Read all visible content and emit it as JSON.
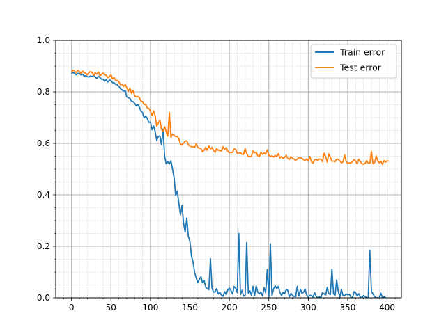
{
  "chart_data": {
    "type": "line",
    "title": "",
    "xlabel": "",
    "ylabel": "",
    "xlim": [
      -20,
      418
    ],
    "ylim": [
      0.0,
      1.0
    ],
    "x_ticks": [
      0,
      50,
      100,
      150,
      200,
      250,
      300,
      350,
      400
    ],
    "x_tick_labels": [
      "0",
      "50",
      "100",
      "150",
      "200",
      "250",
      "300",
      "350",
      "400"
    ],
    "y_ticks": [
      0.0,
      0.2,
      0.4,
      0.6,
      0.8,
      1.0
    ],
    "y_tick_labels": [
      "0.0",
      "0.2",
      "0.4",
      "0.6",
      "0.8",
      "1.0"
    ],
    "grid": "major and minor",
    "legend_position": "upper right",
    "x_start": 0,
    "x_step": 2,
    "series": [
      {
        "name": "Train error",
        "color": "#1f77b4",
        "values": [
          0.87,
          0.875,
          0.872,
          0.866,
          0.872,
          0.871,
          0.866,
          0.869,
          0.861,
          0.863,
          0.859,
          0.857,
          0.862,
          0.859,
          0.865,
          0.858,
          0.852,
          0.86,
          0.856,
          0.849,
          0.85,
          0.841,
          0.848,
          0.838,
          0.846,
          0.844,
          0.836,
          0.835,
          0.829,
          0.828,
          0.822,
          0.812,
          0.808,
          0.803,
          0.805,
          0.781,
          0.777,
          0.775,
          0.764,
          0.762,
          0.756,
          0.746,
          0.751,
          0.741,
          0.725,
          0.719,
          0.699,
          0.706,
          0.697,
          0.681,
          0.683,
          0.653,
          0.668,
          0.646,
          0.611,
          0.627,
          0.629,
          0.594,
          0.655,
          0.548,
          0.52,
          0.528,
          0.52,
          0.532,
          0.5,
          0.465,
          0.398,
          0.415,
          0.366,
          0.322,
          0.359,
          0.287,
          0.255,
          0.31,
          0.24,
          0.219,
          0.161,
          0.14,
          0.098,
          0.077,
          0.06,
          0.071,
          0.082,
          0.059,
          0.067,
          0.042,
          0.035,
          0.032,
          0.152,
          0.038,
          0.022,
          0.023,
          0.036,
          0.015,
          0.021,
          0.01,
          0.006,
          0.024,
          0.012,
          0.031,
          0.038,
          0.028,
          0.015,
          0.044,
          0.037,
          0.02,
          0.25,
          0.012,
          0.029,
          0.007,
          0.01,
          0.215,
          0.018,
          0.027,
          0.009,
          0.044,
          0.009,
          0.046,
          0.022,
          0.015,
          0.023,
          0.007,
          0.04,
          0.02,
          0.11,
          0.003,
          0.21,
          0.009,
          0.034,
          0.047,
          0.036,
          0.044,
          0.021,
          0.009,
          0.021,
          0.016,
          0.032,
          0.029,
          0.004,
          0.017,
          0.009,
          0.006,
          0.005,
          0.044,
          0.007,
          0.033,
          0.017,
          0.022,
          0.034,
          0.01,
          0.003,
          0.01,
          0.009,
          0.003,
          0.02,
          0.006,
          0.0,
          0.004,
          0.002,
          0.02,
          0.016,
          0.011,
          0.04,
          0.016,
          0.013,
          0.111,
          0.016,
          0.011,
          0.07,
          0.025,
          0.003,
          0.033,
          0.009,
          0.009,
          0.015,
          0.011,
          0.014,
          0.003,
          0.0,
          0.024,
          0.02,
          0.007,
          0.016,
          0.003,
          0.0,
          0.009,
          0.005,
          0.0,
          0.0,
          0.185,
          0.026,
          0.015,
          0.005,
          0.0,
          0.0,
          0.0,
          0.018,
          0.0,
          0.004,
          0.0,
          0.0
        ]
      },
      {
        "name": "Test error",
        "color": "#ff7f0e",
        "values": [
          0.875,
          0.885,
          0.881,
          0.874,
          0.884,
          0.879,
          0.871,
          0.881,
          0.873,
          0.873,
          0.866,
          0.874,
          0.879,
          0.876,
          0.864,
          0.875,
          0.869,
          0.877,
          0.862,
          0.868,
          0.873,
          0.865,
          0.865,
          0.855,
          0.859,
          0.867,
          0.85,
          0.856,
          0.844,
          0.844,
          0.839,
          0.827,
          0.83,
          0.821,
          0.829,
          0.817,
          0.802,
          0.814,
          0.794,
          0.805,
          0.785,
          0.78,
          0.782,
          0.778,
          0.764,
          0.763,
          0.751,
          0.752,
          0.737,
          0.736,
          0.724,
          0.709,
          0.726,
          0.707,
          0.667,
          0.679,
          0.69,
          0.655,
          0.647,
          0.665,
          0.646,
          0.628,
          0.72,
          0.623,
          0.637,
          0.631,
          0.626,
          0.628,
          0.618,
          0.597,
          0.595,
          0.601,
          0.608,
          0.61,
          0.596,
          0.589,
          0.587,
          0.587,
          0.585,
          0.598,
          0.585,
          0.581,
          0.58,
          0.567,
          0.573,
          0.585,
          0.573,
          0.59,
          0.578,
          0.584,
          0.573,
          0.565,
          0.58,
          0.573,
          0.572,
          0.57,
          0.587,
          0.576,
          0.584,
          0.569,
          0.563,
          0.565,
          0.565,
          0.579,
          0.577,
          0.561,
          0.563,
          0.563,
          0.558,
          0.557,
          0.58,
          0.56,
          0.549,
          0.548,
          0.55,
          0.57,
          0.563,
          0.566,
          0.552,
          0.549,
          0.566,
          0.557,
          0.563,
          0.558,
          0.575,
          0.554,
          0.549,
          0.552,
          0.547,
          0.553,
          0.549,
          0.56,
          0.543,
          0.549,
          0.542,
          0.545,
          0.554,
          0.541,
          0.538,
          0.548,
          0.542,
          0.539,
          0.533,
          0.539,
          0.544,
          0.544,
          0.542,
          0.536,
          0.533,
          0.54,
          0.531,
          0.549,
          0.529,
          0.523,
          0.536,
          0.538,
          0.533,
          0.539,
          0.539,
          0.528,
          0.562,
          0.549,
          0.527,
          0.559,
          0.546,
          0.53,
          0.532,
          0.529,
          0.539,
          0.538,
          0.532,
          0.525,
          0.527,
          0.555,
          0.529,
          0.522,
          0.524,
          0.524,
          0.528,
          0.537,
          0.531,
          0.52,
          0.538,
          0.529,
          0.521,
          0.519,
          0.521,
          0.533,
          0.523,
          0.523,
          0.569,
          0.521,
          0.525,
          0.551,
          0.532,
          0.524,
          0.53,
          0.518,
          0.533,
          0.527,
          0.533,
          0.53
        ]
      }
    ]
  }
}
